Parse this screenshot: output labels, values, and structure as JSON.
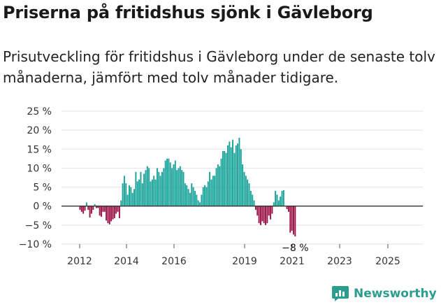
{
  "header": {
    "title": "Priserna på fritidshus sjönk i Gävleborg",
    "subtitle": "Prisutveckling för fritidshus i Gävleborg under de senaste tolv månaderna, jämfört med tolv månader tidigare."
  },
  "brand": {
    "name": "Newsworthy",
    "logo_icon": "newsworthy-logo-icon"
  },
  "colors": {
    "positive": "#1aa39a",
    "negative": "#9c1448",
    "grid": "#e3e3e3",
    "zero_line": "#333333",
    "text": "#333333",
    "brand": "#2a9d8f"
  },
  "chart_data": {
    "type": "bar",
    "title": "",
    "xlabel": "",
    "ylabel": "",
    "ylim": [
      -10,
      25
    ],
    "y_ticks": [
      -10,
      -5,
      0,
      5,
      10,
      15,
      20,
      25
    ],
    "y_tick_labels": [
      "−10 %",
      "−5 %",
      "0 %",
      "5 %",
      "10 %",
      "15 %",
      "20 %",
      "25 %"
    ],
    "x_ticks": [
      "2012",
      "2014",
      "2016",
      "2019",
      "2021",
      "2023",
      "2025"
    ],
    "grid": true,
    "legend": "none",
    "annotation": {
      "label": "−8 %",
      "value": -8,
      "target": "last"
    },
    "series": [
      {
        "values": [
          -1,
          -1.5,
          -2,
          -1.2,
          1,
          -1,
          -3,
          -2,
          -1,
          0.5,
          -0.5,
          -0.5,
          -2.5,
          -2.8,
          -1.5,
          -1.5,
          -3.8,
          -4.5,
          -4.8,
          -4,
          -3.5,
          -3.2,
          -2,
          -1.5,
          -3.2,
          1.5,
          6,
          8,
          6,
          3,
          5.5,
          5,
          3.5,
          4.5,
          9,
          6.5,
          7,
          9,
          6,
          8.5,
          9.5,
          10.5,
          10,
          6.5,
          7,
          8,
          7,
          10,
          9,
          8,
          9,
          10,
          12,
          12.5,
          12.5,
          11.5,
          10,
          11,
          12,
          9.5,
          10,
          10.5,
          9.5,
          9,
          6,
          5.5,
          4.5,
          3.5,
          6,
          5,
          4,
          3,
          1.5,
          1,
          3,
          5,
          5.5,
          5,
          6.5,
          9,
          7,
          8,
          8,
          10,
          11,
          10.5,
          12.5,
          14.5,
          14.5,
          14,
          16,
          17,
          15.5,
          17.5,
          14,
          16,
          16.5,
          18,
          15,
          11,
          9,
          8,
          7,
          6,
          4,
          3,
          1.5,
          -1,
          -2.5,
          -4.5,
          -5,
          -4,
          -4.5,
          -5,
          -4.5,
          -2.5,
          -3.5,
          -2,
          1,
          4,
          3,
          1.5,
          2.5,
          4,
          4.2,
          0,
          -0.8,
          -1.5,
          -7,
          -6.5,
          -7.5,
          -8
        ]
      }
    ]
  }
}
